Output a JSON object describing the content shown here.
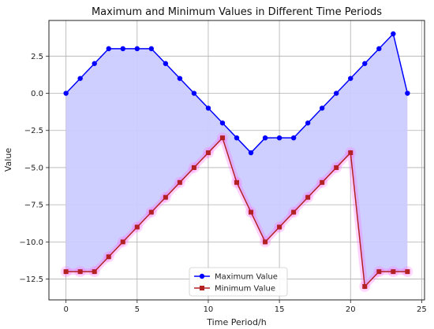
{
  "chart_data": {
    "type": "line",
    "title": "Maximum and Minimum Values in Different Time Periods",
    "xlabel": "Time Period/h",
    "ylabel": "Value",
    "xlim": [
      -1.2,
      25.2
    ],
    "ylim": [
      -13.9,
      4.9
    ],
    "xticks": [
      0,
      5,
      10,
      15,
      20,
      25
    ],
    "xtick_labels": [
      "0",
      "5",
      "10",
      "15",
      "20",
      "25"
    ],
    "yticks": [
      2.5,
      0.0,
      -2.5,
      -5.0,
      -7.5,
      -10.0,
      -12.5
    ],
    "ytick_labels": [
      "2.5",
      "0.0",
      "−2.5",
      "−5.0",
      "−7.5",
      "−10.0",
      "−12.5"
    ],
    "grid": true,
    "legend_position": "lower-center",
    "x": [
      0,
      1,
      2,
      3,
      4,
      5,
      6,
      7,
      8,
      9,
      10,
      11,
      12,
      13,
      14,
      15,
      16,
      17,
      18,
      19,
      20,
      21,
      22,
      23,
      24
    ],
    "series": [
      {
        "name": "Maximum Value",
        "color": "#0000ff",
        "marker": "circle",
        "values": [
          0,
          1,
          2,
          3,
          3,
          3,
          3,
          2,
          1,
          0,
          -1,
          -2,
          -3,
          -4,
          -3,
          -3,
          -3,
          -2,
          -1,
          0,
          1,
          2,
          3,
          4,
          0
        ]
      },
      {
        "name": "Minimum Value",
        "color": "#b22222",
        "marker": "square",
        "values": [
          -12,
          -12,
          -12,
          -11,
          -10,
          -9,
          -8,
          -7,
          -6,
          -5,
          -4,
          -3,
          -6,
          -8,
          -10,
          -9,
          -8,
          -7,
          -6,
          -5,
          -4,
          -13,
          -12,
          -12,
          -12
        ]
      }
    ],
    "fill_between": {
      "color": "#ccccff"
    },
    "min_glow_color": "#ff66ff"
  }
}
